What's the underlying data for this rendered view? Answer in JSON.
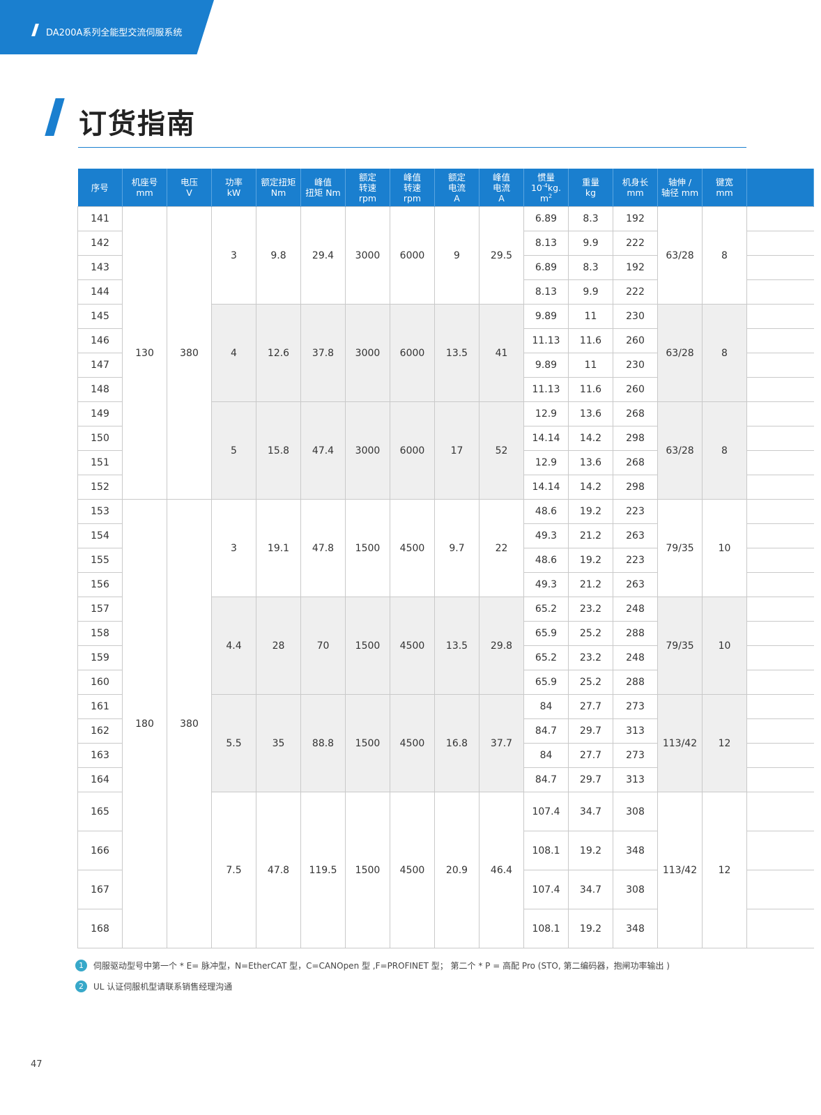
{
  "header": {
    "title": "DA200A系列全能型交流伺服系统"
  },
  "page": {
    "title": "订货指南",
    "number": "47"
  },
  "table": {
    "columns": [
      [
        "序号"
      ],
      [
        "机座号",
        "mm"
      ],
      [
        "电压",
        "V"
      ],
      [
        "功率",
        "kW"
      ],
      [
        "额定扭矩",
        "Nm"
      ],
      [
        "峰值",
        "扭矩 Nm"
      ],
      [
        "额定",
        "转速",
        "rpm"
      ],
      [
        "峰值",
        "转速",
        "rpm"
      ],
      [
        "额定",
        "电流",
        "A"
      ],
      [
        "峰值",
        "电流",
        "A"
      ],
      [
        "惯量",
        "10-4kg.",
        "m2"
      ],
      [
        "重量",
        "kg"
      ],
      [
        "机身长",
        "mm"
      ],
      [
        "轴伸 /",
        "轴径 mm"
      ],
      [
        "键宽",
        "mm"
      ]
    ],
    "frames": [
      {
        "frame": "130",
        "voltage": "380"
      },
      {
        "frame": "180",
        "voltage": "380"
      }
    ],
    "groups": [
      {
        "power": "3",
        "rated_torque": "9.8",
        "peak_torque": "29.4",
        "rated_speed": "3000",
        "peak_speed": "6000",
        "rated_current": "9",
        "peak_current": "29.5",
        "shaft": "63/28",
        "key": "8",
        "rows": [
          [
            "141",
            "6.89",
            "8.3",
            "192"
          ],
          [
            "142",
            "8.13",
            "9.9",
            "222"
          ],
          [
            "143",
            "6.89",
            "8.3",
            "192"
          ],
          [
            "144",
            "8.13",
            "9.9",
            "222"
          ]
        ]
      },
      {
        "power": "4",
        "rated_torque": "12.6",
        "peak_torque": "37.8",
        "rated_speed": "3000",
        "peak_speed": "6000",
        "rated_current": "13.5",
        "peak_current": "41",
        "shaft": "63/28",
        "key": "8",
        "rows": [
          [
            "145",
            "9.89",
            "11",
            "230"
          ],
          [
            "146",
            "11.13",
            "11.6",
            "260"
          ],
          [
            "147",
            "9.89",
            "11",
            "230"
          ],
          [
            "148",
            "11.13",
            "11.6",
            "260"
          ]
        ]
      },
      {
        "power": "5",
        "rated_torque": "15.8",
        "peak_torque": "47.4",
        "rated_speed": "3000",
        "peak_speed": "6000",
        "rated_current": "17",
        "peak_current": "52",
        "shaft": "63/28",
        "key": "8",
        "rows": [
          [
            "149",
            "12.9",
            "13.6",
            "268"
          ],
          [
            "150",
            "14.14",
            "14.2",
            "298"
          ],
          [
            "151",
            "12.9",
            "13.6",
            "268"
          ],
          [
            "152",
            "14.14",
            "14.2",
            "298"
          ]
        ]
      },
      {
        "power": "3",
        "rated_torque": "19.1",
        "peak_torque": "47.8",
        "rated_speed": "1500",
        "peak_speed": "4500",
        "rated_current": "9.7",
        "peak_current": "22",
        "shaft": "79/35",
        "key": "10",
        "rows": [
          [
            "153",
            "48.6",
            "19.2",
            "223"
          ],
          [
            "154",
            "49.3",
            "21.2",
            "263"
          ],
          [
            "155",
            "48.6",
            "19.2",
            "223"
          ],
          [
            "156",
            "49.3",
            "21.2",
            "263"
          ]
        ]
      },
      {
        "power": "4.4",
        "rated_torque": "28",
        "peak_torque": "70",
        "rated_speed": "1500",
        "peak_speed": "4500",
        "rated_current": "13.5",
        "peak_current": "29.8",
        "shaft": "79/35",
        "key": "10",
        "rows": [
          [
            "157",
            "65.2",
            "23.2",
            "248"
          ],
          [
            "158",
            "65.9",
            "25.2",
            "288"
          ],
          [
            "159",
            "65.2",
            "23.2",
            "248"
          ],
          [
            "160",
            "65.9",
            "25.2",
            "288"
          ]
        ]
      },
      {
        "power": "5.5",
        "rated_torque": "35",
        "peak_torque": "88.8",
        "rated_speed": "1500",
        "peak_speed": "4500",
        "rated_current": "16.8",
        "peak_current": "37.7",
        "shaft": "113/42",
        "key": "12",
        "rows": [
          [
            "161",
            "84",
            "27.7",
            "273"
          ],
          [
            "162",
            "84.7",
            "29.7",
            "313"
          ],
          [
            "163",
            "84",
            "27.7",
            "273"
          ],
          [
            "164",
            "84.7",
            "29.7",
            "313"
          ]
        ]
      },
      {
        "power": "7.5",
        "rated_torque": "47.8",
        "peak_torque": "119.5",
        "rated_speed": "1500",
        "peak_speed": "4500",
        "rated_current": "20.9",
        "peak_current": "46.4",
        "shaft": "113/42",
        "key": "12",
        "rows": [
          [
            "165",
            "107.4",
            "34.7",
            "308"
          ],
          [
            "166",
            "108.1",
            "19.2",
            "348"
          ],
          [
            "167",
            "107.4",
            "34.7",
            "308"
          ],
          [
            "168",
            "108.1",
            "19.2",
            "348"
          ]
        ]
      }
    ]
  },
  "notes": [
    {
      "num": "1",
      "text": "伺服驱动型号中第一个 * E= 脉冲型，N=EtherCAT 型，C=CANOpen 型 ,F=PROFINET 型；   第二个 * P = 高配 Pro (STO, 第二编码器，抱闸功率输出 )"
    },
    {
      "num": "2",
      "text": "UL 认证伺服机型请联系销售经理沟通"
    }
  ]
}
